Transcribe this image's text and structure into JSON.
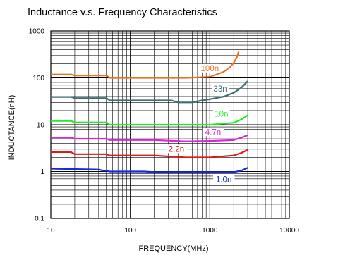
{
  "chart_data": {
    "type": "line",
    "title": "Inductance v.s. Frequency Characteristics",
    "xlabel": "FREQUENCY(MHz)",
    "ylabel": "INDUCTANCE(nH)",
    "xscale": "log",
    "yscale": "log",
    "xlim": [
      10,
      10000
    ],
    "ylim": [
      0.1,
      1000
    ],
    "grid": true,
    "x_ticks": [
      "10",
      "100",
      "1000",
      "10000"
    ],
    "y_ticks": [
      "0.1",
      "1",
      "10",
      "100",
      "1000"
    ],
    "series": [
      {
        "name": "100n",
        "color": "#f07020",
        "x": [
          10,
          18,
          20,
          50,
          55,
          100,
          200,
          500,
          1000,
          1500,
          1800,
          2000,
          2200,
          2300
        ],
        "y": [
          118,
          118,
          112,
          112,
          100,
          100,
          100,
          100,
          105,
          135,
          170,
          210,
          280,
          360
        ]
      },
      {
        "name": "33n",
        "color": "#3a7070",
        "x": [
          10,
          18,
          20,
          50,
          55,
          100,
          200,
          330,
          400,
          600,
          800,
          1000,
          1500,
          2000,
          2500,
          3000
        ],
        "y": [
          39,
          39,
          37,
          37,
          33,
          33,
          33,
          33,
          30,
          30,
          33,
          35,
          40,
          48,
          62,
          85
        ]
      },
      {
        "name": "10n",
        "color": "#22ee22",
        "x": [
          10,
          18,
          20,
          50,
          55,
          100,
          200,
          500,
          1000,
          2000,
          2500,
          3000
        ],
        "y": [
          12,
          12,
          11.2,
          11.2,
          10,
          10,
          10,
          10,
          10,
          11,
          13,
          16
        ]
      },
      {
        "name": "4.7n",
        "color": "#e020e0",
        "x": [
          10,
          18,
          20,
          50,
          55,
          100,
          200,
          500,
          1000,
          2000,
          2500,
          3000
        ],
        "y": [
          5.3,
          5.3,
          5.0,
          5.0,
          4.7,
          4.7,
          4.7,
          4.4,
          4.5,
          4.7,
          5.3,
          6.0
        ]
      },
      {
        "name": "2.2n",
        "color": "#e01818",
        "x": [
          10,
          18,
          20,
          50,
          55,
          100,
          200,
          500,
          1000,
          2000,
          2500,
          3000
        ],
        "y": [
          2.6,
          2.6,
          2.35,
          2.35,
          2.2,
          2.2,
          2.2,
          2.0,
          2.0,
          2.2,
          2.5,
          2.9
        ]
      },
      {
        "name": "1.0n",
        "color": "#1828e0",
        "x": [
          10,
          40,
          45,
          50,
          55,
          100,
          150,
          200,
          300,
          1000,
          2000,
          2500,
          3000
        ],
        "y": [
          1.15,
          1.1,
          1.05,
          1.05,
          1.0,
          1.0,
          1.0,
          0.97,
          0.97,
          0.97,
          0.97,
          1.05,
          1.2
        ]
      }
    ]
  }
}
